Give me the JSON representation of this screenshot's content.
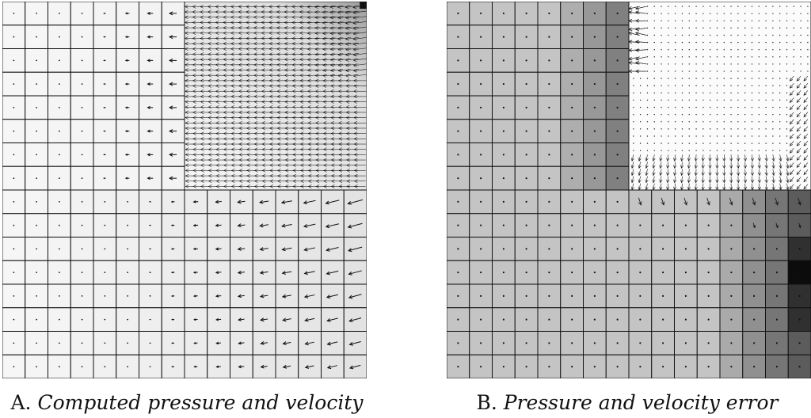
{
  "panels": [
    {
      "id": "A",
      "caption_label": "A.",
      "caption_text": "Computed pressure and velocity",
      "description_grid": "16x16 coarse cells, top-right quadrant refined with fine arrows",
      "shading": {
        "base": "#f4f4f4",
        "coarse_right": "#e8e8e8",
        "fine_region_top": "#f8f8f8",
        "fine_region_dark_corner": "#111111"
      },
      "arrow_field": "leftward, growing toward upper-right corner"
    },
    {
      "id": "B",
      "caption_label": "B.",
      "caption_text": "Pressure and velocity error",
      "shading": {
        "base": "#c4c4c4",
        "mid": "#a8a8a8",
        "dark_col": "#808080",
        "fine_region": "#fafafa",
        "right_dark": "#1a1a1a"
      },
      "arrow_field": "error arrows concentrated along fine-region boundary"
    }
  ]
}
